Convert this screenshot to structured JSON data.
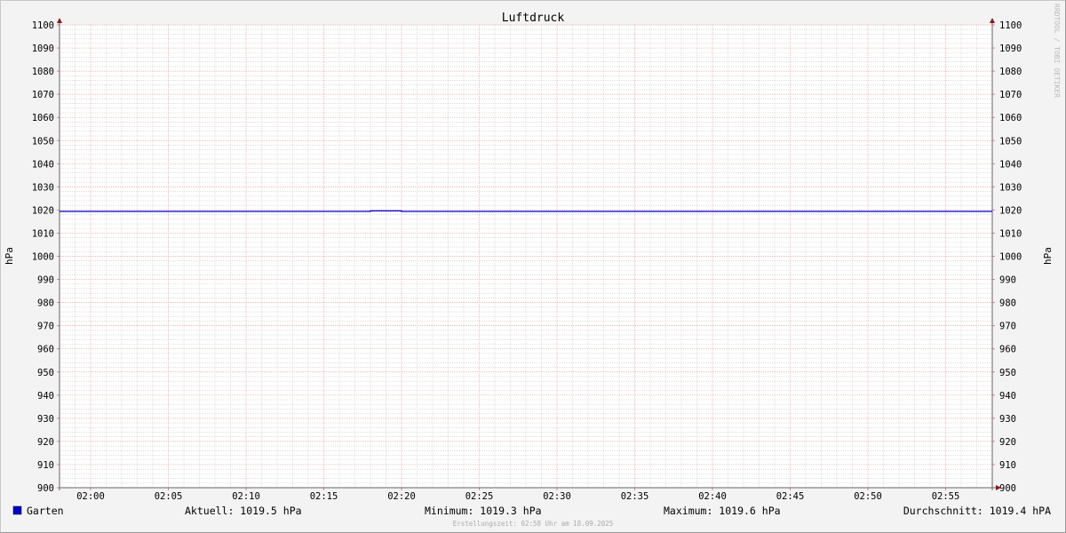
{
  "chart_data": {
    "type": "line",
    "title": "Luftdruck",
    "ylabel": "hPa",
    "ylabel_right": "hPa",
    "ylim": [
      900,
      1100
    ],
    "xlim": [
      "01:58",
      "02:58"
    ],
    "y_ticks": [
      900,
      910,
      920,
      930,
      940,
      950,
      960,
      970,
      980,
      990,
      1000,
      1010,
      1020,
      1030,
      1040,
      1050,
      1060,
      1070,
      1080,
      1090,
      1100
    ],
    "x_ticks": [
      "02:00",
      "02:05",
      "02:10",
      "02:15",
      "02:20",
      "02:25",
      "02:30",
      "02:35",
      "02:40",
      "02:45",
      "02:50",
      "02:55"
    ],
    "grid": true,
    "series": [
      {
        "name": "Garten",
        "color": "#0000cc",
        "x": [
          "01:58",
          "02:18",
          "02:18",
          "02:20",
          "02:20",
          "02:58"
        ],
        "values": [
          1019.4,
          1019.4,
          1019.6,
          1019.6,
          1019.4,
          1019.4
        ]
      }
    ],
    "legend": {
      "placement": "bottom-left",
      "items": [
        {
          "name": "Garten",
          "color": "#0000cc"
        }
      ]
    },
    "stats": {
      "current": "Aktuell: 1019.5 hPa",
      "minimum": "Minimum: 1019.3 hPa",
      "maximum": "Maximum: 1019.6 hPa",
      "average": "Durchschnitt: 1019.4 hPA"
    },
    "watermark": "RRDTOOL / TOBI OETIKER",
    "footer": "Erstellungszeit: 02:58 Uhr am 18.09.2025"
  }
}
